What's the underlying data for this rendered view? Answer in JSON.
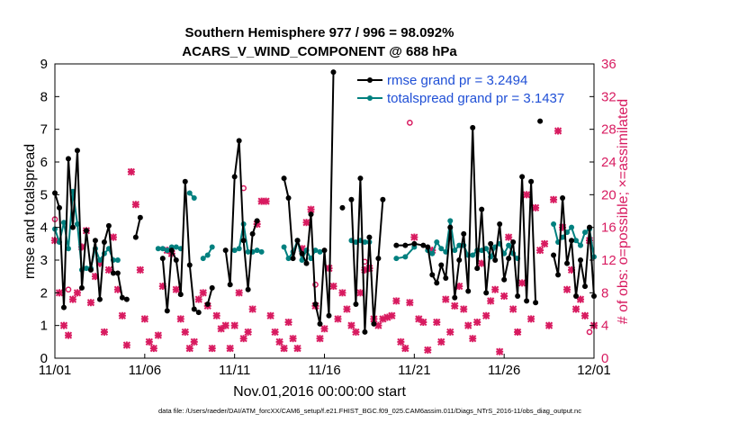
{
  "chart_data": {
    "type": "line",
    "title_line1": "Southern Hemisphere 977 / 996 = 98.092%",
    "title_line2": "ACARS_V_WIND_COMPONENT @ 688 hPa",
    "xlabel": "Nov.01,2016 00:00:00 start",
    "ylabel_left": "rmse and totalspread",
    "ylabel_right": "# of obs: o=possible; ×=assimilated",
    "x_ticks": [
      "11/01",
      "11/06",
      "11/11",
      "11/16",
      "11/21",
      "11/26",
      "12/01"
    ],
    "x_tick_days": [
      0,
      5,
      10,
      15,
      20,
      25,
      30
    ],
    "xlim": [
      0,
      30
    ],
    "ylim_left": [
      0,
      9
    ],
    "yticks_left": [
      "0",
      "1",
      "2",
      "3",
      "4",
      "5",
      "6",
      "7",
      "8",
      "9"
    ],
    "ylim_right": [
      0,
      36
    ],
    "yticks_right": [
      "0",
      "4",
      "8",
      "12",
      "16",
      "20",
      "24",
      "28",
      "32",
      "36"
    ],
    "colors": {
      "rmse": "#000000",
      "spread": "#00807f",
      "obs": "#d81b60",
      "legend_text": "#1f4fd6"
    },
    "legend": {
      "rmse": "rmse grand pr = 3.2494",
      "spread": "totalspread grand pr = 3.1437"
    },
    "footer": "data file: /Users/raeder/DAI/ATM_forcXX/CAM6_setup/f.e21.FHIST_BGC.f09_025.CAM6assim.011/Diags_NTrS_2016-11/obs_diag_output.nc",
    "series": [
      {
        "name": "rmse",
        "segments": [
          [
            [
              0.0,
              5.05
            ],
            [
              0.25,
              4.6
            ],
            [
              0.5,
              1.55
            ],
            [
              0.75,
              6.1
            ],
            [
              1.0,
              4.0
            ],
            [
              1.25,
              6.35
            ],
            [
              1.5,
              2.15
            ],
            [
              1.75,
              3.9
            ],
            [
              2.0,
              2.7
            ],
            [
              2.25,
              3.6
            ],
            [
              2.5,
              1.8
            ],
            [
              2.75,
              3.55
            ],
            [
              3.0,
              4.05
            ],
            [
              3.25,
              2.6
            ],
            [
              3.5,
              2.6
            ],
            [
              3.75,
              1.85
            ],
            [
              4.0,
              1.8
            ]
          ],
          [
            [
              4.5,
              3.7
            ],
            [
              4.75,
              4.3
            ]
          ],
          [
            [
              6.0,
              3.05
            ],
            [
              6.25,
              1.45
            ],
            [
              6.5,
              3.3
            ],
            [
              6.75,
              3.0
            ],
            [
              7.0,
              1.95
            ],
            [
              7.25,
              5.4
            ],
            [
              7.5,
              2.85
            ],
            [
              7.75,
              1.5
            ],
            [
              8.0,
              1.4
            ]
          ],
          [
            [
              8.5,
              1.65
            ],
            [
              8.75,
              2.15
            ]
          ],
          [
            [
              9.5,
              3.3
            ],
            [
              9.75,
              2.25
            ],
            [
              10.0,
              5.55
            ],
            [
              10.25,
              6.65
            ],
            [
              10.5,
              3.6
            ],
            [
              10.75,
              2.1
            ],
            [
              11.0,
              3.8
            ],
            [
              11.25,
              4.2
            ]
          ],
          [
            [
              12.75,
              5.5
            ],
            [
              13.0,
              4.9
            ],
            [
              13.25,
              3.05
            ],
            [
              13.5,
              3.6
            ],
            [
              13.75,
              3.2
            ],
            [
              14.0,
              2.9
            ],
            [
              14.25,
              4.4
            ],
            [
              14.5,
              1.65
            ],
            [
              14.75,
              1.05
            ],
            [
              15.0,
              3.3
            ],
            [
              15.25,
              1.3
            ],
            [
              15.5,
              8.75
            ]
          ],
          [
            [
              16.0,
              4.6
            ]
          ],
          [
            [
              16.5,
              4.85
            ],
            [
              16.75,
              1.65
            ],
            [
              17.0,
              5.5
            ],
            [
              17.25,
              0.8
            ],
            [
              17.5,
              3.7
            ],
            [
              17.75,
              1.05
            ],
            [
              18.0,
              3.05
            ],
            [
              18.25,
              4.85
            ]
          ],
          [
            [
              19.0,
              3.45
            ],
            [
              19.5,
              3.45
            ],
            [
              20.0,
              3.5
            ],
            [
              20.5,
              3.45
            ]
          ],
          [
            [
              20.75,
              3.4
            ],
            [
              21.0,
              2.55
            ],
            [
              21.25,
              2.3
            ],
            [
              21.5,
              2.85
            ],
            [
              21.75,
              2.45
            ],
            [
              22.0,
              4.0
            ],
            [
              22.25,
              1.85
            ],
            [
              22.5,
              3.0
            ],
            [
              22.75,
              3.8
            ],
            [
              23.0,
              2.05
            ],
            [
              23.25,
              7.05
            ],
            [
              23.5,
              2.75
            ],
            [
              23.75,
              4.55
            ],
            [
              24.0,
              2.0
            ],
            [
              24.25,
              3.5
            ],
            [
              24.5,
              3.0
            ],
            [
              24.75,
              4.1
            ],
            [
              25.0,
              2.4
            ],
            [
              25.25,
              3.05
            ],
            [
              25.5,
              3.55
            ],
            [
              25.75,
              1.9
            ],
            [
              26.0,
              5.55
            ],
            [
              26.25,
              1.75
            ],
            [
              26.5,
              5.4
            ],
            [
              26.75,
              1.7
            ]
          ],
          [
            [
              27.0,
              7.25
            ]
          ],
          [
            [
              27.75,
              3.15
            ],
            [
              28.0,
              2.55
            ],
            [
              28.25,
              4.9
            ],
            [
              28.5,
              2.9
            ],
            [
              28.75,
              3.6
            ],
            [
              29.0,
              1.9
            ],
            [
              29.25,
              3.0
            ],
            [
              29.5,
              2.2
            ],
            [
              29.75,
              4.0
            ],
            [
              30.0,
              1.9
            ]
          ]
        ]
      },
      {
        "name": "totalspread",
        "segments": [
          [
            [
              0.0,
              3.95
            ],
            [
              0.25,
              3.55
            ],
            [
              0.5,
              4.15
            ],
            [
              0.75,
              3.35
            ],
            [
              1.0,
              5.1
            ],
            [
              1.25,
              4.1
            ],
            [
              1.5,
              2.7
            ],
            [
              1.75,
              2.75
            ],
            [
              2.0,
              2.75
            ],
            [
              2.25,
              3.35
            ],
            [
              2.5,
              3.0
            ],
            [
              2.75,
              3.2
            ],
            [
              3.0,
              3.35
            ],
            [
              3.25,
              3.0
            ],
            [
              3.5,
              3.0
            ]
          ],
          [
            [
              5.75,
              3.35
            ],
            [
              6.0,
              3.35
            ],
            [
              6.25,
              3.3
            ],
            [
              6.5,
              3.4
            ],
            [
              6.75,
              3.4
            ],
            [
              7.0,
              3.35
            ]
          ],
          [
            [
              7.5,
              5.05
            ],
            [
              7.75,
              4.9
            ]
          ],
          [
            [
              8.25,
              3.05
            ],
            [
              8.5,
              3.15
            ],
            [
              8.75,
              3.4
            ]
          ],
          [
            [
              10.0,
              3.3
            ],
            [
              10.25,
              3.35
            ],
            [
              10.5,
              4.1
            ],
            [
              10.75,
              3.25
            ],
            [
              11.0,
              3.25
            ],
            [
              11.25,
              3.3
            ],
            [
              11.5,
              3.25
            ]
          ],
          [
            [
              12.75,
              3.4
            ],
            [
              13.0,
              3.05
            ],
            [
              13.25,
              3.25
            ],
            [
              13.5,
              3.6
            ],
            [
              13.75,
              3.0
            ],
            [
              14.0,
              3.3
            ],
            [
              14.25,
              3.05
            ],
            [
              14.5,
              3.3
            ],
            [
              14.75,
              3.25
            ]
          ],
          [
            [
              16.5,
              3.6
            ],
            [
              16.75,
              3.55
            ],
            [
              17.0,
              3.6
            ],
            [
              17.25,
              3.55
            ],
            [
              17.5,
              3.55
            ]
          ],
          [
            [
              19.0,
              3.05
            ],
            [
              19.5,
              3.1
            ],
            [
              20.0,
              3.4
            ]
          ],
          [
            [
              20.75,
              3.3
            ],
            [
              21.0,
              3.2
            ],
            [
              21.25,
              3.55
            ],
            [
              21.5,
              3.35
            ],
            [
              21.75,
              3.25
            ],
            [
              22.0,
              4.2
            ],
            [
              22.25,
              3.3
            ],
            [
              22.5,
              3.45
            ],
            [
              22.75,
              3.45
            ],
            [
              23.0,
              3.15
            ],
            [
              23.25,
              3.15
            ],
            [
              23.5,
              3.3
            ],
            [
              23.75,
              3.3
            ],
            [
              24.0,
              3.35
            ],
            [
              24.25,
              3.1
            ],
            [
              24.5,
              3.4
            ],
            [
              24.75,
              3.5
            ],
            [
              25.0,
              3.2
            ],
            [
              25.25,
              3.45
            ],
            [
              25.5,
              3.2
            ],
            [
              25.75,
              3.05
            ]
          ],
          [
            [
              27.75,
              4.1
            ],
            [
              28.0,
              3.55
            ],
            [
              28.25,
              3.7
            ],
            [
              28.5,
              3.85
            ],
            [
              28.75,
              4.0
            ],
            [
              29.0,
              3.6
            ],
            [
              29.25,
              3.45
            ],
            [
              29.5,
              3.85
            ],
            [
              29.75,
              3.95
            ],
            [
              30.0,
              3.1
            ]
          ]
        ]
      }
    ],
    "obs_assimilated": [
      [
        0.0,
        3.6
      ],
      [
        0.25,
        2.0
      ],
      [
        0.5,
        1.0
      ],
      [
        0.75,
        0.7
      ],
      [
        1.0,
        1.8
      ],
      [
        1.25,
        2.0
      ],
      [
        1.5,
        3.4
      ],
      [
        1.75,
        3.9
      ],
      [
        2.0,
        1.7
      ],
      [
        2.25,
        2.5
      ],
      [
        2.5,
        2.9
      ],
      [
        2.75,
        0.8
      ],
      [
        3.0,
        2.7
      ],
      [
        3.25,
        3.7
      ],
      [
        3.5,
        2.1
      ],
      [
        3.75,
        1.3
      ],
      [
        4.0,
        0.4
      ],
      [
        4.25,
        5.7
      ],
      [
        4.5,
        4.7
      ],
      [
        4.75,
        2.7
      ],
      [
        5.0,
        1.2
      ],
      [
        5.25,
        0.5
      ],
      [
        5.5,
        0.3
      ],
      [
        5.75,
        0.7
      ],
      [
        6.0,
        2.2
      ],
      [
        6.25,
        3.3
      ],
      [
        6.5,
        3.2
      ],
      [
        6.75,
        2.1
      ],
      [
        7.0,
        1.2
      ],
      [
        7.25,
        0.8
      ],
      [
        7.5,
        0.3
      ],
      [
        7.75,
        0.5
      ],
      [
        8.0,
        1.8
      ],
      [
        8.25,
        2.0
      ],
      [
        8.5,
        1.6
      ],
      [
        8.75,
        0.3
      ],
      [
        9.0,
        1.3
      ],
      [
        9.25,
        0.9
      ],
      [
        9.5,
        1.0
      ],
      [
        9.75,
        0.3
      ],
      [
        10.0,
        1.0
      ],
      [
        10.25,
        2.0
      ],
      [
        10.5,
        0.6
      ],
      [
        10.75,
        0.8
      ],
      [
        11.0,
        1.5
      ],
      [
        11.25,
        4.1
      ],
      [
        11.5,
        4.8
      ],
      [
        11.75,
        4.8
      ],
      [
        12.0,
        1.3
      ],
      [
        12.25,
        0.8
      ],
      [
        12.5,
        0.5
      ],
      [
        12.75,
        0.3
      ],
      [
        13.0,
        1.1
      ],
      [
        13.25,
        0.6
      ],
      [
        13.5,
        0.3
      ],
      [
        13.75,
        3.35
      ],
      [
        14.0,
        4.15
      ],
      [
        14.25,
        4.55
      ],
      [
        14.5,
        1.6
      ],
      [
        14.75,
        0.6
      ],
      [
        15.0,
        0.9
      ],
      [
        15.25,
        2.75
      ],
      [
        15.5,
        2.2
      ],
      [
        15.75,
        1.2
      ],
      [
        16.0,
        2.0
      ],
      [
        16.25,
        1.5
      ],
      [
        16.5,
        1.0
      ],
      [
        16.75,
        0.8
      ],
      [
        17.0,
        2.0
      ],
      [
        17.25,
        2.7
      ],
      [
        17.5,
        2.75
      ],
      [
        17.75,
        1.2
      ],
      [
        18.0,
        1.0
      ],
      [
        18.25,
        1.2
      ],
      [
        18.5,
        1.25
      ],
      [
        18.75,
        1.3
      ],
      [
        19.0,
        1.75
      ],
      [
        19.25,
        0.5
      ],
      [
        19.5,
        0.3
      ],
      [
        19.75,
        1.7
      ],
      [
        20.0,
        3.7
      ],
      [
        20.25,
        1.2
      ],
      [
        20.5,
        1.1
      ],
      [
        20.75,
        0.25
      ],
      [
        21.0,
        3.3
      ],
      [
        21.25,
        1.1
      ],
      [
        21.5,
        0.5
      ],
      [
        21.75,
        1.8
      ],
      [
        22.0,
        0.8
      ],
      [
        22.25,
        1.6
      ],
      [
        22.5,
        2.2
      ],
      [
        22.75,
        1.5
      ],
      [
        23.0,
        1.0
      ],
      [
        23.25,
        0.6
      ],
      [
        23.5,
        1.1
      ],
      [
        23.75,
        2.9
      ],
      [
        24.0,
        1.3
      ],
      [
        24.25,
        1.75
      ],
      [
        24.5,
        2.1
      ],
      [
        24.75,
        0.2
      ],
      [
        25.0,
        1.9
      ],
      [
        25.25,
        3.7
      ],
      [
        25.5,
        1.5
      ],
      [
        25.75,
        0.8
      ],
      [
        26.0,
        2.3
      ],
      [
        26.25,
        5.0
      ],
      [
        26.5,
        1.2
      ],
      [
        26.75,
        4.6
      ],
      [
        27.0,
        3.3
      ],
      [
        27.25,
        3.5
      ],
      [
        27.5,
        1.0
      ],
      [
        27.75,
        4.85
      ],
      [
        28.0,
        6.95
      ],
      [
        28.25,
        4.0
      ],
      [
        28.5,
        2.1
      ],
      [
        28.75,
        2.7
      ],
      [
        29.0,
        1.5
      ],
      [
        29.25,
        1.8
      ],
      [
        29.5,
        1.3
      ],
      [
        29.75,
        3.6
      ],
      [
        30.0,
        1.0
      ]
    ],
    "obs_possible": [
      [
        0.0,
        4.25
      ],
      [
        0.75,
        2.1
      ],
      [
        14.5,
        2.25
      ],
      [
        19.75,
        7.2
      ],
      [
        25.75,
        0.8
      ],
      [
        29.75,
        0.8
      ],
      [
        10.5,
        5.2
      ],
      [
        17.25,
        2.95
      ]
    ]
  }
}
